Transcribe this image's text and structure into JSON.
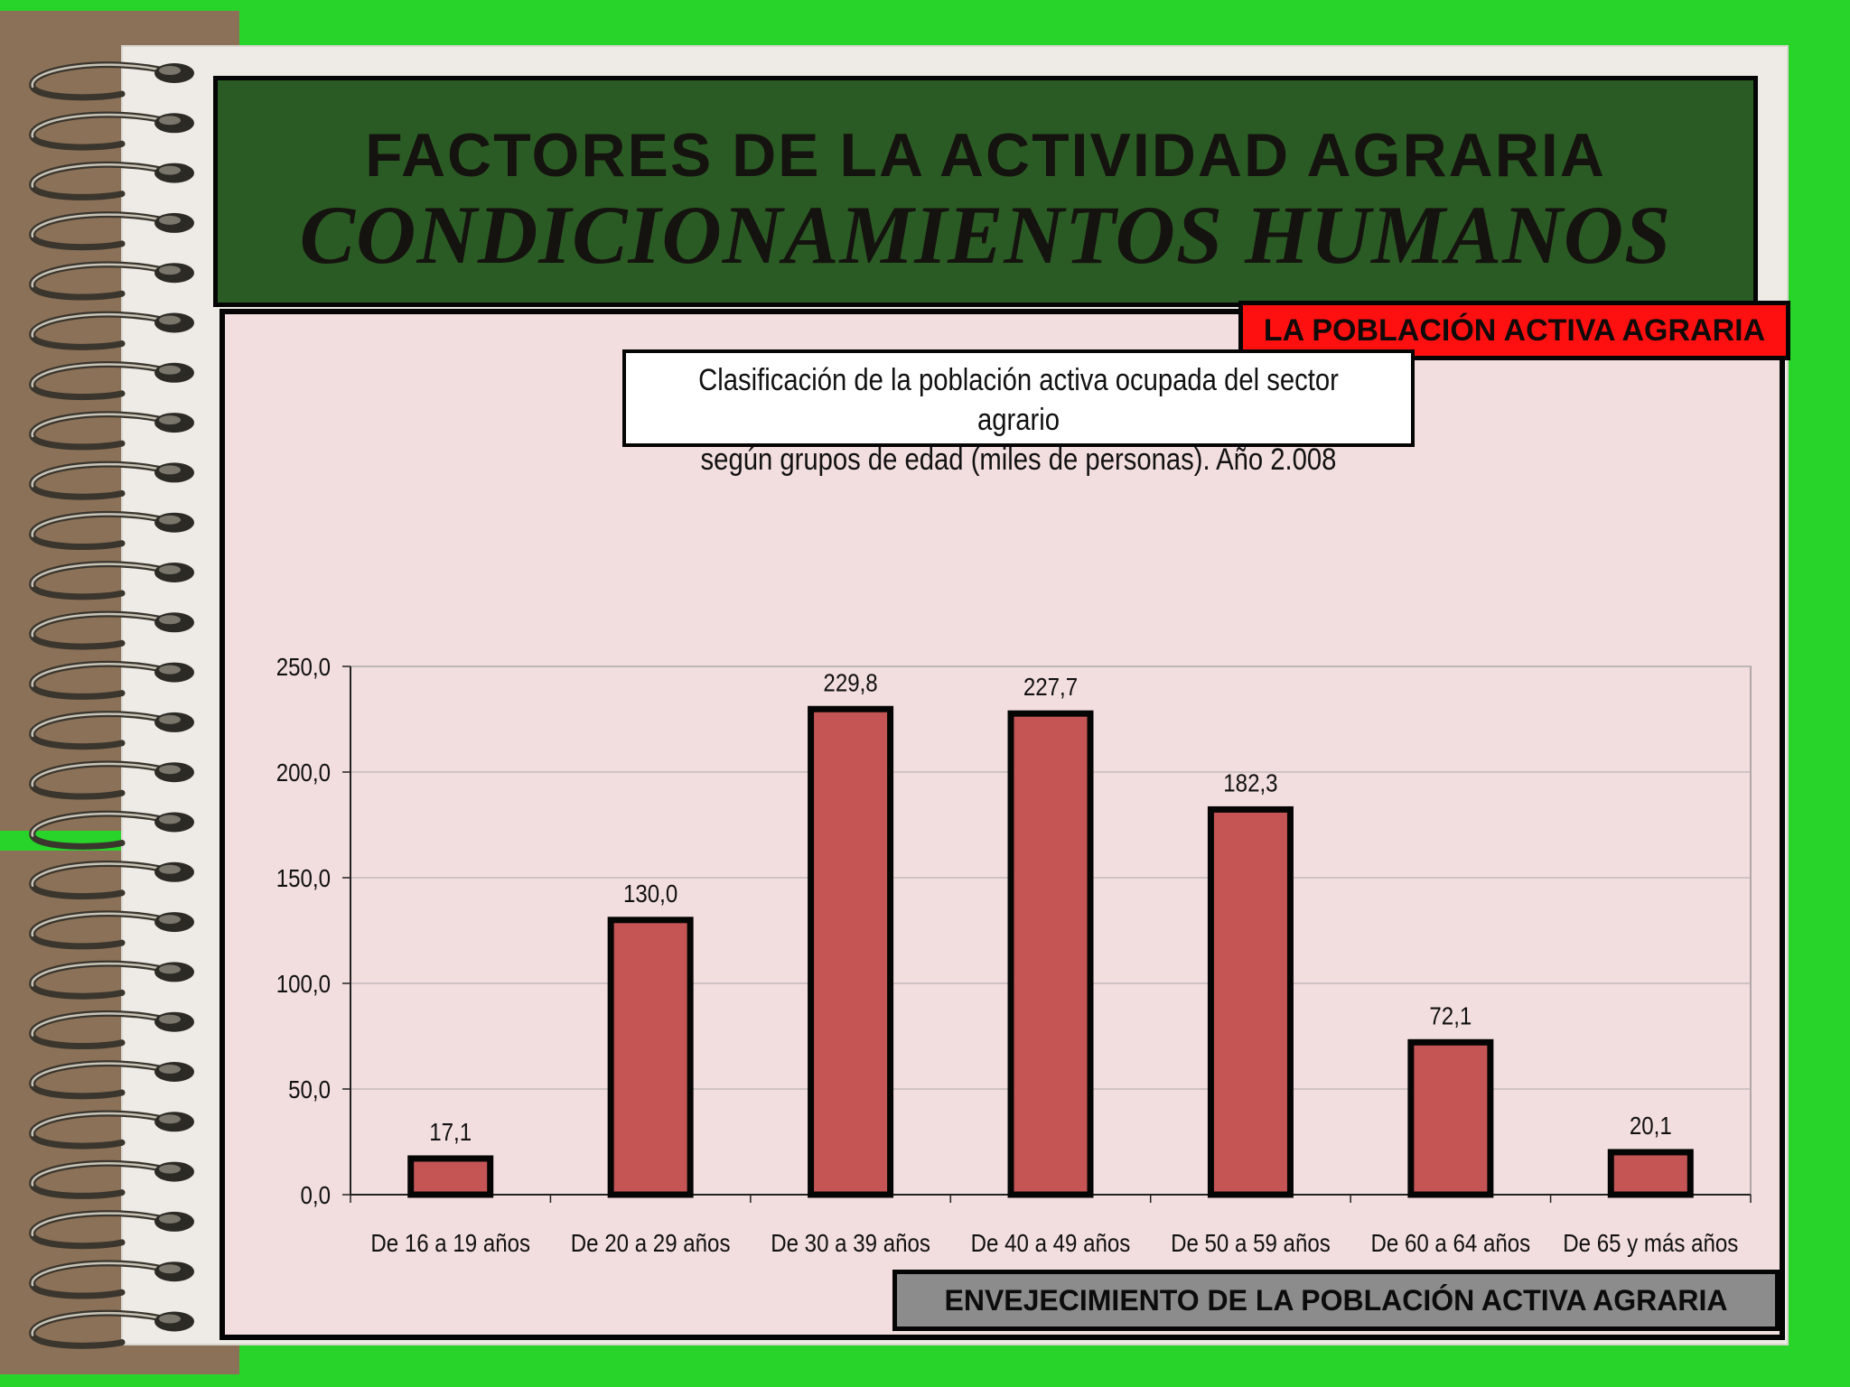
{
  "slide": {
    "title_main": "FACTORES DE LA ACTIVIDAD AGRARIA",
    "title_sub": "CONDICIONAMIENTOS HUMANOS",
    "section_badge": "LA POBLACIÓN ACTIVA AGRARIA",
    "footer_badge": "ENVEJECIMIENTO DE LA POBLACIÓN ACTIVA AGRARIA",
    "colors": {
      "background": "#28d42a",
      "header": "#2b5b24",
      "section_badge": "#ff1010",
      "footer_badge": "#8c8c8c",
      "plot_area": "#f3dedf",
      "bar": "#c55555"
    }
  },
  "chart_data": {
    "type": "bar",
    "title_line1": "Clasificación de la población activa ocupada del sector agrario",
    "title_line2": "según grupos de edad (miles de personas). Año 2.008",
    "categories": [
      "De 16 a 19 años",
      "De 20 a 29 años",
      "De 30 a 39 años",
      "De 40 a 49 años",
      "De 50 a 59 años",
      "De 60 a 64 años",
      "De 65 y más años"
    ],
    "values": [
      17.1,
      130.0,
      229.8,
      227.7,
      182.3,
      72.1,
      20.1
    ],
    "value_labels": [
      "17,1",
      "130,0",
      "229,8",
      "227,7",
      "182,3",
      "72,1",
      "20,1"
    ],
    "ylim": [
      0,
      250
    ],
    "yticks": [
      0,
      50,
      100,
      150,
      200,
      250
    ],
    "ytick_labels": [
      "0,0",
      "50,0",
      "100,0",
      "150,0",
      "200,0",
      "250,0"
    ],
    "grid": true,
    "legend": "none",
    "xlabel": "",
    "ylabel": ""
  }
}
